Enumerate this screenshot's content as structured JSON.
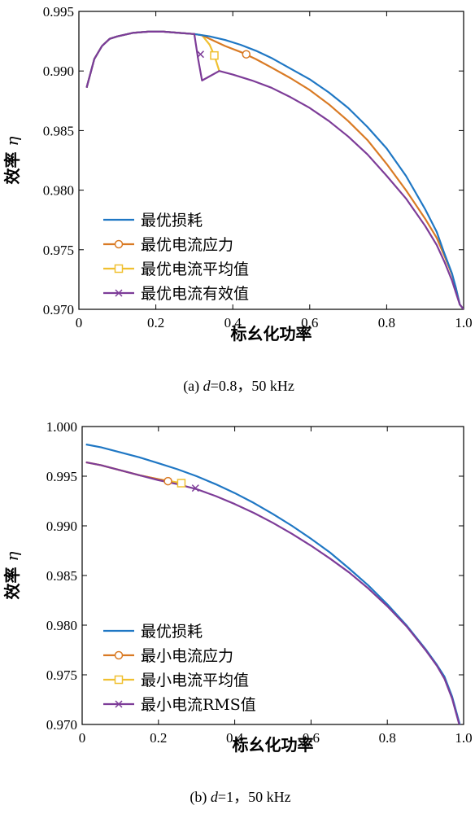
{
  "chart_data": [
    {
      "type": "line",
      "caption_prefix": "(a) ",
      "caption_var": "d",
      "caption_suffix": "=0.8，50 kHz",
      "xlabel": "标幺化功率",
      "ylabel_text": "效率",
      "ylabel_symbol": "η",
      "xlim": [
        0,
        1.0
      ],
      "ylim": [
        0.97,
        0.995
      ],
      "xticks": [
        0,
        0.2,
        0.4,
        0.6,
        0.8,
        1.0
      ],
      "xtick_labels": [
        "0",
        "0.2",
        "0.4",
        "0.6",
        "0.8",
        "1.0"
      ],
      "yticks": [
        0.97,
        0.975,
        0.98,
        0.985,
        0.99,
        0.995
      ],
      "ytick_labels": [
        "0.970",
        "0.975",
        "0.980",
        "0.985",
        "0.990",
        "0.995"
      ],
      "legend_position": "bottom-left",
      "series": [
        {
          "name": "最优损耗",
          "color": "#1f77c4",
          "marker": "none",
          "x": [
            0.02,
            0.04,
            0.06,
            0.08,
            0.1,
            0.14,
            0.18,
            0.22,
            0.26,
            0.3,
            0.34,
            0.38,
            0.42,
            0.46,
            0.5,
            0.55,
            0.6,
            0.65,
            0.7,
            0.75,
            0.8,
            0.85,
            0.9,
            0.93,
            0.95,
            0.97,
            0.98,
            0.99,
            1.0
          ],
          "y": [
            0.9886,
            0.991,
            0.9921,
            0.9927,
            0.9929,
            0.9932,
            0.9933,
            0.9933,
            0.9932,
            0.9931,
            0.9929,
            0.9926,
            0.9922,
            0.9917,
            0.9911,
            0.9902,
            0.9893,
            0.9882,
            0.9869,
            0.9853,
            0.9835,
            0.9812,
            0.9784,
            0.9765,
            0.9747,
            0.973,
            0.9718,
            0.9704,
            0.97
          ]
        },
        {
          "name": "最优电流应力",
          "color": "#d97a24",
          "marker": "circle",
          "marker_at": [
            0.435,
            0.9914
          ],
          "x": [
            0.02,
            0.04,
            0.06,
            0.08,
            0.1,
            0.14,
            0.18,
            0.22,
            0.26,
            0.3,
            0.32,
            0.34,
            0.38,
            0.42,
            0.46,
            0.5,
            0.55,
            0.6,
            0.65,
            0.7,
            0.75,
            0.8,
            0.85,
            0.9,
            0.93,
            0.95,
            0.97,
            0.98,
            0.99,
            1.0
          ],
          "y": [
            0.9886,
            0.991,
            0.9921,
            0.9927,
            0.9929,
            0.9932,
            0.9933,
            0.9933,
            0.9932,
            0.9931,
            0.993,
            0.9927,
            0.9921,
            0.9916,
            0.991,
            0.9903,
            0.9894,
            0.9884,
            0.9872,
            0.9858,
            0.9842,
            0.9822,
            0.98,
            0.9776,
            0.976,
            0.9745,
            0.9729,
            0.9718,
            0.9704,
            0.97
          ]
        },
        {
          "name": "最优电流平均值",
          "color": "#f0c030",
          "marker": "square",
          "marker_at": [
            0.352,
            0.9913
          ],
          "x": [
            0.02,
            0.04,
            0.06,
            0.08,
            0.1,
            0.14,
            0.18,
            0.22,
            0.26,
            0.3,
            0.32,
            0.34,
            0.352,
            0.365
          ],
          "y": [
            0.9886,
            0.991,
            0.9921,
            0.9927,
            0.9929,
            0.9932,
            0.9933,
            0.9933,
            0.9932,
            0.9931,
            0.993,
            0.9922,
            0.9913,
            0.99
          ]
        },
        {
          "name": "最优电流有效值",
          "color": "#7d3c98",
          "marker": "x",
          "marker_at": [
            0.316,
            0.9914
          ],
          "x": [
            0.02,
            0.04,
            0.06,
            0.08,
            0.1,
            0.14,
            0.18,
            0.22,
            0.26,
            0.3,
            0.31,
            0.32,
            0.365,
            0.4,
            0.45,
            0.5,
            0.55,
            0.6,
            0.65,
            0.7,
            0.75,
            0.8,
            0.85,
            0.9,
            0.93,
            0.95,
            0.97,
            0.98,
            0.99,
            1.0
          ],
          "y": [
            0.9886,
            0.991,
            0.9921,
            0.9927,
            0.9929,
            0.9932,
            0.9933,
            0.9933,
            0.9932,
            0.9931,
            0.991,
            0.9892,
            0.99,
            0.9897,
            0.9892,
            0.9886,
            0.9878,
            0.9869,
            0.9858,
            0.9845,
            0.983,
            0.9812,
            0.9793,
            0.977,
            0.9754,
            0.974,
            0.9724,
            0.9714,
            0.9704,
            0.97
          ]
        }
      ]
    },
    {
      "type": "line",
      "caption_prefix": "(b) ",
      "caption_var": "d",
      "caption_suffix": "=1，50 kHz",
      "xlabel": "标幺化功率",
      "ylabel_text": "效率",
      "ylabel_symbol": "η",
      "xlim": [
        0,
        1.0
      ],
      "ylim": [
        0.97,
        1.0
      ],
      "xticks": [
        0,
        0.2,
        0.4,
        0.6,
        0.8,
        1.0
      ],
      "xtick_labels": [
        "0",
        "0.2",
        "0.4",
        "0.6",
        "0.8",
        "1.0"
      ],
      "yticks": [
        0.97,
        0.975,
        0.98,
        0.985,
        0.99,
        0.995,
        1.0
      ],
      "ytick_labels": [
        "0.970",
        "0.975",
        "0.980",
        "0.985",
        "0.990",
        "0.995",
        "1.000"
      ],
      "legend_position": "bottom-left",
      "series": [
        {
          "name": "最优损耗",
          "color": "#1f77c4",
          "marker": "none",
          "x": [
            0.01,
            0.05,
            0.1,
            0.15,
            0.2,
            0.25,
            0.3,
            0.35,
            0.4,
            0.45,
            0.5,
            0.55,
            0.6,
            0.65,
            0.7,
            0.75,
            0.8,
            0.85,
            0.9,
            0.93,
            0.95,
            0.97,
            0.98,
            0.99,
            0.995
          ],
          "y": [
            0.9982,
            0.9979,
            0.9974,
            0.9969,
            0.9963,
            0.9957,
            0.995,
            0.9942,
            0.9933,
            0.9923,
            0.9912,
            0.99,
            0.9887,
            0.9873,
            0.9857,
            0.984,
            0.9821,
            0.98,
            0.9776,
            0.976,
            0.9748,
            0.9728,
            0.9714,
            0.97,
            0.969
          ]
        },
        {
          "name": "最小电流应力",
          "color": "#d97a24",
          "marker": "circle",
          "marker_at": [
            0.225,
            0.9945
          ],
          "x": [
            0.01,
            0.05,
            0.1,
            0.15,
            0.2,
            0.225
          ],
          "y": [
            0.9964,
            0.9961,
            0.9956,
            0.9951,
            0.9947,
            0.9945
          ]
        },
        {
          "name": "最小电流平均值",
          "color": "#f0c030",
          "marker": "square",
          "marker_at": [
            0.26,
            0.9943
          ],
          "x": [
            0.01,
            0.05,
            0.1,
            0.15,
            0.2,
            0.26
          ],
          "y": [
            0.9964,
            0.9961,
            0.9956,
            0.9951,
            0.9947,
            0.9943
          ]
        },
        {
          "name": "最小电流RMS值",
          "color": "#7d3c98",
          "marker": "x",
          "marker_at": [
            0.297,
            0.9938
          ],
          "x": [
            0.01,
            0.05,
            0.1,
            0.15,
            0.2,
            0.25,
            0.3,
            0.35,
            0.4,
            0.45,
            0.5,
            0.55,
            0.6,
            0.65,
            0.7,
            0.75,
            0.8,
            0.85,
            0.9,
            0.93,
            0.95,
            0.97,
            0.98,
            0.99,
            0.995
          ],
          "y": [
            0.9964,
            0.9961,
            0.9956,
            0.9951,
            0.9946,
            0.9942,
            0.9937,
            0.993,
            0.9922,
            0.9913,
            0.9903,
            0.9892,
            0.988,
            0.9867,
            0.9853,
            0.9837,
            0.9819,
            0.9799,
            0.9775,
            0.9759,
            0.9746,
            0.9726,
            0.9712,
            0.9698,
            0.969
          ]
        }
      ]
    }
  ]
}
